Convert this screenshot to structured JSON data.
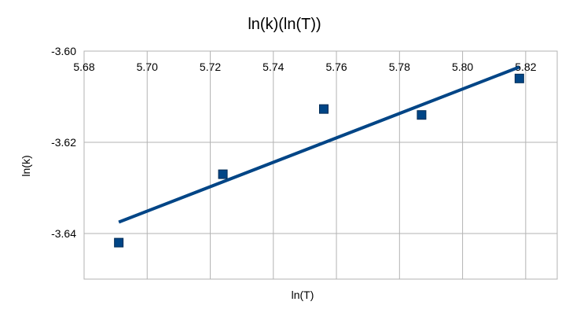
{
  "chart_data": {
    "type": "scatter",
    "title": "ln(k)(ln(T))",
    "xlabel": "ln(T)",
    "ylabel": "ln(k)",
    "xlim": [
      5.68,
      5.83
    ],
    "ylim": [
      -3.65,
      -3.6
    ],
    "x_ticks": [
      "5.68",
      "5.70",
      "5.72",
      "5.74",
      "5.76",
      "5.78",
      "5.80",
      "5.82"
    ],
    "y_ticks": [
      "-3.60",
      "-3.62",
      "-3.64"
    ],
    "grid": true,
    "legend": "none",
    "points": [
      {
        "x": 5.691,
        "y": -3.642
      },
      {
        "x": 5.724,
        "y": -3.627
      },
      {
        "x": 5.756,
        "y": -3.6127
      },
      {
        "x": 5.787,
        "y": -3.614
      },
      {
        "x": 5.818,
        "y": -3.606
      }
    ],
    "trendline": {
      "x": [
        5.691,
        5.818
      ],
      "y": [
        -3.6375,
        -3.6035
      ]
    },
    "colors": {
      "marker": "#004586",
      "trendline": "#004586",
      "grid": "#b3b3b3"
    }
  }
}
